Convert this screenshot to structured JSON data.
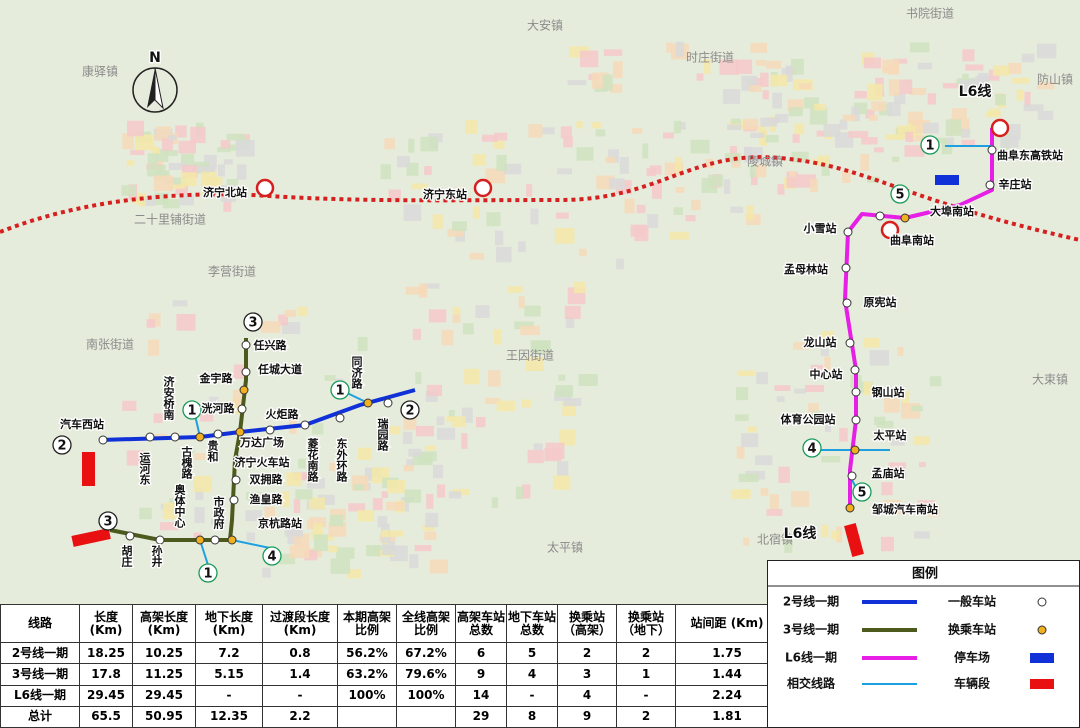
{
  "map": {
    "areas": [
      "康驿镇",
      "大安镇",
      "时庄街道",
      "书院街道",
      "防山镇",
      "陵城镇",
      "二十里铺街道",
      "南张街道",
      "李营街道",
      "王因街道",
      "太平镇",
      "北宿镇",
      "大束镇"
    ],
    "rail_stations": [
      "济宁北站",
      "济宁东站"
    ],
    "line_labels": [
      "L6线",
      "L6线"
    ],
    "line_numbers": [
      "2",
      "2",
      "3",
      "3",
      "1",
      "1",
      "1",
      "4",
      "1",
      "5",
      "4",
      "5"
    ],
    "line2_stations": [
      "汽车西站",
      "运河东",
      "济安桥南",
      "古槐路",
      "贵和",
      "万达广场",
      "火炬路",
      "菱花南路",
      "东外环路",
      "同济路",
      "瑞园路"
    ],
    "line3_stations": [
      "任兴路",
      "任城大道",
      "金宇路",
      "洸河路",
      "济宁火车站",
      "双拥路",
      "渔皇路",
      "京杭路站",
      "市政府",
      "奥体中心",
      "孙井",
      "胡庄"
    ],
    "l6_stations": [
      "曲阜东高铁站",
      "辛庄站",
      "大埠南站",
      "曲阜南站",
      "小雪站",
      "孟母林站",
      "原宪站",
      "龙山站",
      "中心站",
      "钢山站",
      "体育公园站",
      "太平站",
      "孟庙站",
      "邹城汽车南站"
    ]
  },
  "legend": {
    "title": "图例",
    "lines": [
      "2号线一期",
      "3号线一期",
      "L6线一期",
      "相交线路"
    ],
    "symbols": [
      "一般车站",
      "换乘车站",
      "停车场",
      "车辆段"
    ]
  },
  "table": {
    "header": [
      "线路",
      "长度 (Km)",
      "高架长度 (Km)",
      "地下长度 (Km)",
      "过渡段长度 (Km)",
      "本期高架比例",
      "全线高架比例",
      "高架车站总数",
      "地下车站总数",
      "换乘站 （高架）",
      "换乘站 （地下）",
      "站间距 (Km)"
    ],
    "rows": [
      [
        "2号线一期",
        "18.25",
        "10.25",
        "7.2",
        "0.8",
        "56.2%",
        "67.2%",
        "6",
        "5",
        "2",
        "2",
        "1.75"
      ],
      [
        "3号线一期",
        "17.8",
        "11.25",
        "5.15",
        "1.4",
        "63.2%",
        "79.6%",
        "9",
        "4",
        "3",
        "1",
        "1.44"
      ],
      [
        "L6线一期",
        "29.45",
        "29.45",
        "-",
        "-",
        "100%",
        "100%",
        "14",
        "-",
        "4",
        "-",
        "2.24"
      ],
      [
        "总计",
        "65.5",
        "50.95",
        "12.35",
        "2.2",
        null,
        null,
        "29",
        "8",
        "9",
        "2",
        "1.81"
      ]
    ]
  }
}
